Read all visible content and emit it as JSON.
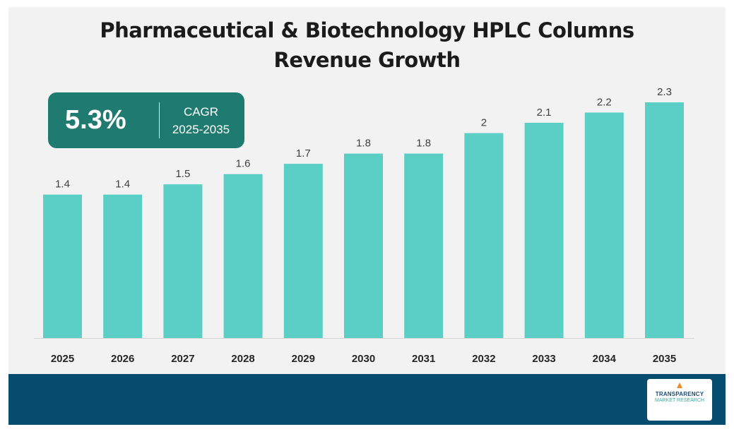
{
  "chart_data": {
    "type": "bar",
    "title": "Pharmaceutical & Biotechnology HPLC Columns Revenue Growth",
    "title_lines": [
      "Pharmaceutical & Biotechnology HPLC Columns",
      "Revenue Growth"
    ],
    "categories": [
      "2025",
      "2026",
      "2027",
      "2028",
      "2029",
      "2030",
      "2031",
      "2032",
      "2033",
      "2034",
      "2035"
    ],
    "values": [
      1.4,
      1.4,
      1.5,
      1.6,
      1.7,
      1.8,
      1.8,
      2.0,
      2.1,
      2.2,
      2.3
    ],
    "value_labels": [
      "1.4",
      "1.4",
      "1.5",
      "1.6",
      "1.7",
      "1.8",
      "1.8",
      "2",
      "2.1",
      "2.2",
      "2.3"
    ],
    "xlabel": "",
    "ylabel": "",
    "grid": false,
    "bar_color": "#5bcfc5"
  },
  "cagr": {
    "value": "5.3%",
    "label": "CAGR",
    "period": "2025-2035",
    "box_color": "#1f7b70"
  },
  "footer": {
    "color": "#064c6e",
    "logo_line1": "TRANSPARENCY",
    "logo_line2": "MARKET RESEARCH"
  }
}
